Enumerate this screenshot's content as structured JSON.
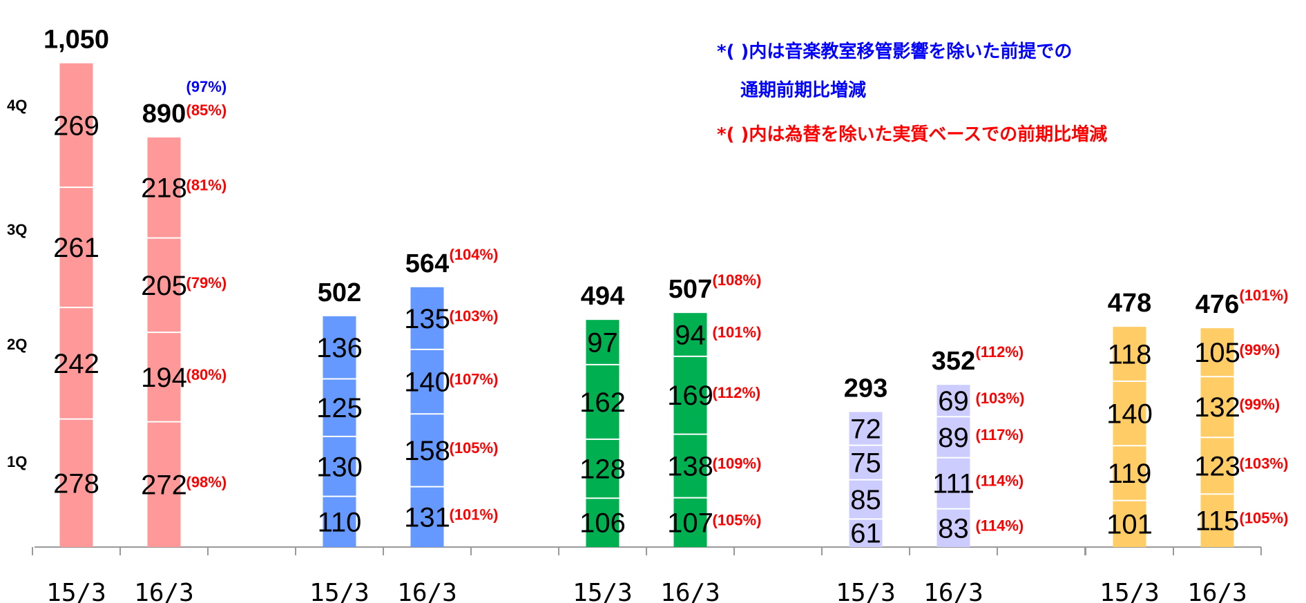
{
  "notes": [
    {
      "text": "*(  )内は音楽教室移管影響を除いた前提での",
      "color": "#0000ff"
    },
    {
      "text": "通期前期比増減",
      "color": "#0000ff"
    },
    {
      "text": "*(  )内は為替を除いた実質ベースでの前期比増減",
      "color": "#ff0000"
    }
  ],
  "chart_data": {
    "type": "bar",
    "stacked": true,
    "quarters": [
      "1Q",
      "2Q",
      "3Q",
      "4Q"
    ],
    "groups": [
      {
        "color": "#ff9999",
        "bars": [
          {
            "x": "15/3",
            "values": [
              278,
              242,
              261,
              269
            ],
            "total": "1,050",
            "total_pct": "",
            "total_pct2": "",
            "pcts": [
              "",
              "",
              "",
              ""
            ]
          },
          {
            "x": "16/3",
            "values": [
              272,
              194,
              205,
              218
            ],
            "total": "890",
            "total_pct": "(97%)",
            "total_pct2": "(85%)",
            "pcts": [
              "(98%)",
              "(80%)",
              "(79%)",
              "(81%)"
            ]
          }
        ]
      },
      {
        "color": "#6699ff",
        "bars": [
          {
            "x": "15/3",
            "values": [
              110,
              130,
              125,
              136
            ],
            "total": "502",
            "total_pct": "",
            "total_pct2": "",
            "pcts": [
              "",
              "",
              "",
              ""
            ]
          },
          {
            "x": "16/3",
            "values": [
              131,
              158,
              140,
              135
            ],
            "total": "564",
            "total_pct": "(104%)",
            "total_pct2": "",
            "pcts": [
              "(101%)",
              "(105%)",
              "(107%)",
              "(103%)"
            ]
          }
        ]
      },
      {
        "color": "#00b050",
        "bars": [
          {
            "x": "15/3",
            "values": [
              106,
              128,
              162,
              97
            ],
            "total": "494",
            "total_pct": "",
            "total_pct2": "",
            "pcts": [
              "",
              "",
              "",
              ""
            ]
          },
          {
            "x": "16/3",
            "values": [
              107,
              138,
              169,
              94
            ],
            "total": "507",
            "total_pct": "(108%)",
            "total_pct2": "",
            "pcts": [
              "(105%)",
              "(109%)",
              "(112%)",
              "(101%)"
            ]
          }
        ]
      },
      {
        "color": "#ccccff",
        "bars": [
          {
            "x": "15/3",
            "values": [
              61,
              85,
              75,
              72
            ],
            "total": "293",
            "total_pct": "",
            "total_pct2": "",
            "pcts": [
              "",
              "",
              "",
              ""
            ]
          },
          {
            "x": "16/3",
            "values": [
              83,
              111,
              89,
              69
            ],
            "total": "352",
            "total_pct": "(112%)",
            "total_pct2": "",
            "pcts": [
              "(114%)",
              "(114%)",
              "(117%)",
              "(103%)"
            ]
          }
        ]
      },
      {
        "color": "#ffcc66",
        "bars": [
          {
            "x": "15/3",
            "values": [
              101,
              119,
              140,
              118
            ],
            "total": "478",
            "total_pct": "",
            "total_pct2": "",
            "pcts": [
              "",
              "",
              "",
              ""
            ]
          },
          {
            "x": "16/3",
            "values": [
              115,
              123,
              132,
              105
            ],
            "total": "476",
            "total_pct": "(101%)",
            "total_pct2": "",
            "pcts": [
              "(105%)",
              "(103%)",
              "(99%)",
              "(99%)"
            ]
          }
        ]
      }
    ],
    "colors": {
      "pct": "#ff0000",
      "pct_alt": "#0000ff",
      "axis": "#999999",
      "text": "#000000"
    }
  }
}
